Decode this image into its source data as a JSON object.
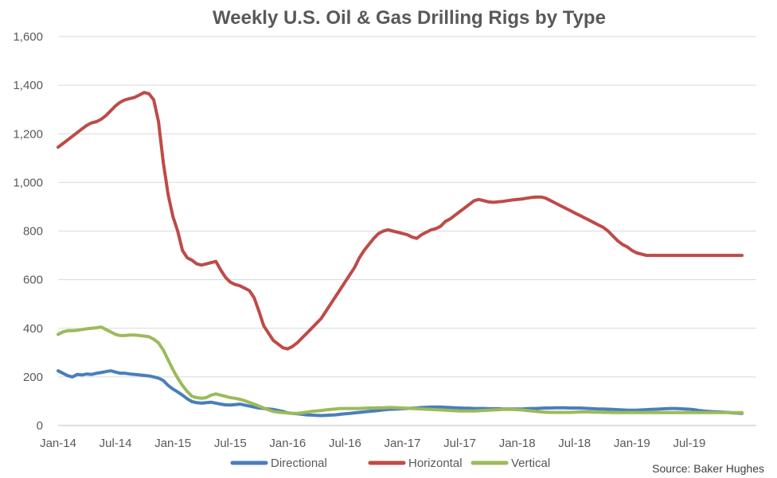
{
  "chart_data": {
    "type": "line",
    "title": "Weekly U.S. Oil & Gas Drilling Rigs by Type",
    "source": "Source: Baker Hughes",
    "ylim": [
      0,
      1600
    ],
    "yticks": [
      "0",
      "200",
      "400",
      "600",
      "800",
      "1,000",
      "1,200",
      "1,400",
      "1,600"
    ],
    "xlim": [
      0,
      73
    ],
    "xticks": [
      "Jan-14",
      "Jul-14",
      "Jan-15",
      "Jul-15",
      "Jan-16",
      "Jul-16",
      "Jan-17",
      "Jul-17",
      "Jan-18",
      "Jul-18",
      "Jan-19",
      "Jul-19"
    ],
    "grid": true,
    "legend_position": "bottom",
    "x": [
      0,
      0.5,
      1,
      1.5,
      2,
      2.5,
      3,
      3.5,
      4,
      4.5,
      5,
      5.5,
      6,
      6.5,
      7,
      7.5,
      8,
      8.5,
      9,
      9.5,
      10,
      10.5,
      11,
      11.5,
      12,
      12.5,
      13,
      13.5,
      14,
      14.5,
      15,
      15.5,
      16,
      16.5,
      17,
      17.5,
      18,
      18.5,
      19,
      19.5,
      20,
      20.5,
      21,
      21.5,
      22,
      22.5,
      23,
      23.5,
      24,
      24.5,
      25,
      25.5,
      26,
      26.5,
      27,
      27.5,
      28,
      28.5,
      29,
      29.5,
      30,
      30.5,
      31,
      31.5,
      32,
      32.5,
      33,
      33.5,
      34,
      34.5,
      35,
      35.5,
      36,
      36.5,
      37,
      37.5,
      38,
      38.5,
      39,
      39.5,
      40,
      40.5,
      41,
      41.5,
      42,
      42.5,
      43,
      43.5,
      44,
      44.5,
      45,
      45.5,
      46,
      46.5,
      47,
      47.5,
      48,
      48.5,
      49,
      49.5,
      50,
      50.5,
      51,
      51.5,
      52,
      52.5,
      53,
      53.5,
      54,
      54.5,
      55,
      55.5,
      56,
      56.5,
      57,
      57.5,
      58,
      58.5,
      59,
      59.5,
      60,
      60.5,
      61,
      61.5,
      62,
      62.5,
      63,
      63.5,
      64,
      64.5,
      65,
      65.5,
      66,
      66.5,
      67,
      67.5,
      68,
      68.5,
      69,
      69.5,
      70,
      70.5,
      71,
      71.5
    ],
    "series": [
      {
        "name": "Directional",
        "color": "#4a7ebb",
        "values": [
          225,
          215,
          205,
          200,
          210,
          208,
          212,
          210,
          215,
          218,
          222,
          225,
          220,
          215,
          215,
          212,
          210,
          208,
          206,
          204,
          200,
          195,
          185,
          165,
          150,
          138,
          125,
          110,
          98,
          94,
          92,
          94,
          96,
          92,
          88,
          85,
          84,
          86,
          88,
          84,
          80,
          76,
          72,
          70,
          68,
          66,
          62,
          58,
          52,
          50,
          48,
          46,
          44,
          43,
          42,
          41,
          42,
          43,
          44,
          46,
          48,
          50,
          52,
          54,
          56,
          58,
          60,
          62,
          64,
          66,
          67,
          68,
          69,
          70,
          71,
          72,
          74,
          75,
          76,
          76,
          76,
          75,
          74,
          73,
          72,
          71,
          71,
          70,
          70,
          70,
          69,
          69,
          69,
          68,
          68,
          68,
          68,
          68,
          69,
          70,
          70,
          71,
          72,
          72,
          73,
          73,
          73,
          72,
          72,
          72,
          71,
          70,
          69,
          68,
          68,
          67,
          66,
          65,
          64,
          63,
          63,
          63,
          64,
          65,
          66,
          67,
          68,
          69,
          70,
          70,
          69,
          68,
          67,
          65,
          62,
          60,
          58,
          57,
          56,
          55,
          54,
          52,
          51,
          50
        ]
      },
      {
        "name": "Horizontal",
        "color": "#be4b48",
        "values": [
          1145,
          1160,
          1175,
          1190,
          1205,
          1220,
          1235,
          1245,
          1250,
          1260,
          1275,
          1295,
          1315,
          1330,
          1340,
          1345,
          1350,
          1360,
          1370,
          1365,
          1340,
          1250,
          1080,
          950,
          860,
          800,
          720,
          690,
          680,
          665,
          660,
          665,
          670,
          675,
          640,
          610,
          590,
          580,
          575,
          565,
          555,
          525,
          470,
          410,
          380,
          350,
          335,
          320,
          315,
          325,
          340,
          360,
          380,
          400,
          420,
          440,
          470,
          500,
          530,
          560,
          590,
          620,
          650,
          690,
          720,
          745,
          770,
          790,
          800,
          805,
          800,
          795,
          790,
          785,
          775,
          770,
          785,
          795,
          805,
          810,
          820,
          840,
          850,
          865,
          880,
          895,
          910,
          925,
          930,
          925,
          920,
          918,
          920,
          922,
          925,
          928,
          930,
          932,
          935,
          938,
          940,
          940,
          935,
          925,
          915,
          905,
          895,
          885,
          875,
          865,
          855,
          845,
          835,
          825,
          815,
          800,
          780,
          760,
          745,
          735,
          720,
          710,
          705,
          700,
          700,
          700,
          700,
          700,
          700,
          700,
          700,
          700,
          700,
          700,
          700,
          700,
          700,
          700,
          700,
          700,
          700,
          700,
          700,
          700
        ]
      },
      {
        "name": "Vertical",
        "color": "#9bbb59",
        "values": [
          375,
          385,
          390,
          390,
          392,
          395,
          398,
          400,
          402,
          405,
          395,
          385,
          375,
          370,
          370,
          372,
          372,
          370,
          368,
          365,
          355,
          340,
          310,
          270,
          230,
          195,
          165,
          140,
          120,
          115,
          112,
          115,
          125,
          130,
          125,
          120,
          115,
          112,
          108,
          102,
          95,
          88,
          80,
          72,
          64,
          58,
          55,
          53,
          52,
          50,
          50,
          52,
          55,
          58,
          60,
          62,
          64,
          66,
          68,
          70,
          70,
          70,
          70,
          70,
          71,
          72,
          72,
          73,
          73,
          74,
          74,
          73,
          72,
          71,
          70,
          69,
          68,
          67,
          66,
          65,
          64,
          63,
          62,
          61,
          60,
          60,
          60,
          60,
          61,
          62,
          63,
          64,
          65,
          66,
          66,
          66,
          65,
          64,
          62,
          60,
          58,
          56,
          55,
          54,
          54,
          54,
          54,
          54,
          55,
          56,
          56,
          56,
          55,
          55,
          54,
          54,
          53,
          53,
          53,
          53,
          53,
          53,
          53,
          53,
          53,
          53,
          53,
          53,
          53,
          53,
          53,
          53,
          53,
          53,
          53,
          53,
          53,
          53,
          53,
          53,
          53,
          53,
          53,
          53
        ]
      }
    ]
  }
}
